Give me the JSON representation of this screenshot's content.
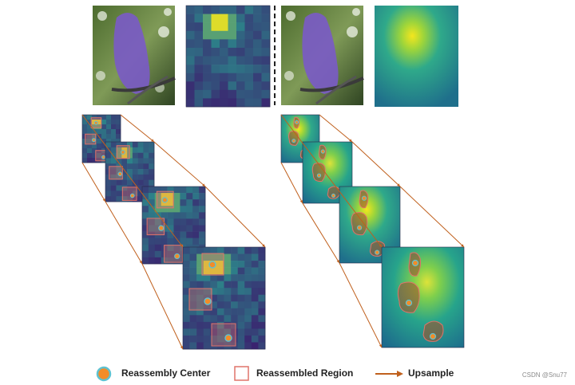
{
  "colors": {
    "heat_low": "#3b1f6e",
    "heat_mid": "#2b8c8c",
    "heat_high": "#f4e61e",
    "center": "#f28c28",
    "region": "#e0736a",
    "arrow": "#c0601d",
    "bird": "#7a5bc4"
  },
  "legend": {
    "center_label": "Reassembly Center",
    "region_label": "Reassembled Region",
    "upsample_label": "Upsample"
  },
  "watermark": "CSDN @Snu77"
}
